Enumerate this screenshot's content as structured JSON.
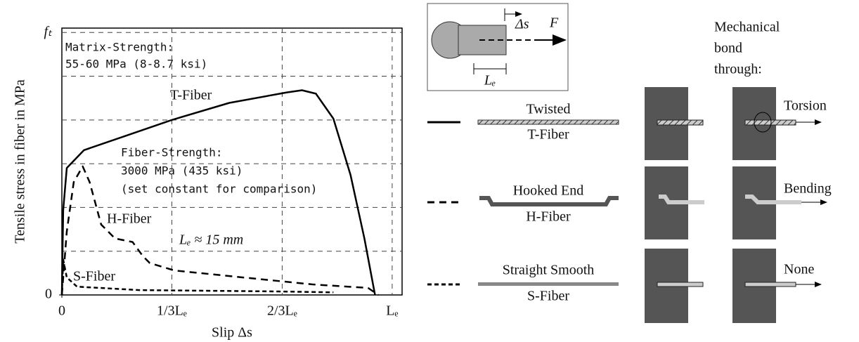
{
  "chart_data": {
    "type": "line",
    "ylabel": "Tensile stress in fiber in MPa",
    "xlabel": "Slip Δs",
    "xlim": [
      0,
      1.03
    ],
    "ylim": [
      0,
      6.1
    ],
    "xticks": [
      0,
      {
        "value": 0.333,
        "label": "1/3Lₑ"
      },
      {
        "value": 0.667,
        "label": "2/3Lₑ"
      },
      {
        "value": 1,
        "label": "Lₑ"
      }
    ],
    "yticks": [
      0,
      {
        "value": 6,
        "label": "fₜ"
      }
    ],
    "ygrid": [
      1,
      2,
      3,
      4,
      5
    ],
    "grid": true,
    "series": [
      {
        "name": "T-Fiber",
        "color": "#000000",
        "style": "solid",
        "x": [
          0,
          0.004,
          0.015,
          0.067,
          0.19,
          0.333,
          0.507,
          0.681,
          0.727,
          0.769,
          0.822,
          0.874,
          0.916,
          0.948
        ],
        "values": [
          0,
          1.94,
          2.9,
          3.31,
          3.63,
          4.0,
          4.39,
          4.63,
          4.68,
          4.6,
          4.03,
          2.74,
          1.29,
          0
        ]
      },
      {
        "name": "H-Fiber",
        "color": "#000000",
        "style": "dashed",
        "x": [
          0,
          0.015,
          0.036,
          0.063,
          0.084,
          0.119,
          0.161,
          0.214,
          0.245,
          0.266,
          0.34,
          0.549,
          0.759,
          0.927,
          0.958
        ],
        "values": [
          0,
          1.45,
          2.58,
          2.94,
          2.58,
          1.61,
          1.29,
          1.21,
          0.89,
          0.73,
          0.56,
          0.4,
          0.24,
          0.16,
          0
        ]
      },
      {
        "name": "S-Fiber",
        "color": "#000000",
        "style": "short-dashed",
        "x": [
          0,
          0.004,
          0.015,
          0.046,
          0.235,
          0.654,
          0.822
        ],
        "values": [
          0,
          0.81,
          0.4,
          0.19,
          0.11,
          0.08,
          0.06
        ]
      }
    ],
    "annotations": [
      [
        "Matrix-Strength:",
        "55-60 MPa (8-8.7 ksi)"
      ],
      [
        "Fiber-Strength:",
        "3000 MPa (435 ksi)",
        "(set constant for comparison)"
      ],
      [
        "Lₑ ≈ 15 mm"
      ]
    ]
  },
  "diagram": {
    "inset": {
      "slip": "Δs",
      "force": "F",
      "length": "Lₑ"
    },
    "bond_title": [
      "Mechanical",
      "bond",
      "through:"
    ],
    "rows": [
      {
        "top": "Twisted",
        "bottom": "T-Fiber",
        "bond": "Torsion"
      },
      {
        "top": "Hooked End",
        "bottom": "H-Fiber",
        "bond": "Bending"
      },
      {
        "top": "Straight Smooth",
        "bottom": "S-Fiber",
        "bond": "None"
      }
    ]
  }
}
